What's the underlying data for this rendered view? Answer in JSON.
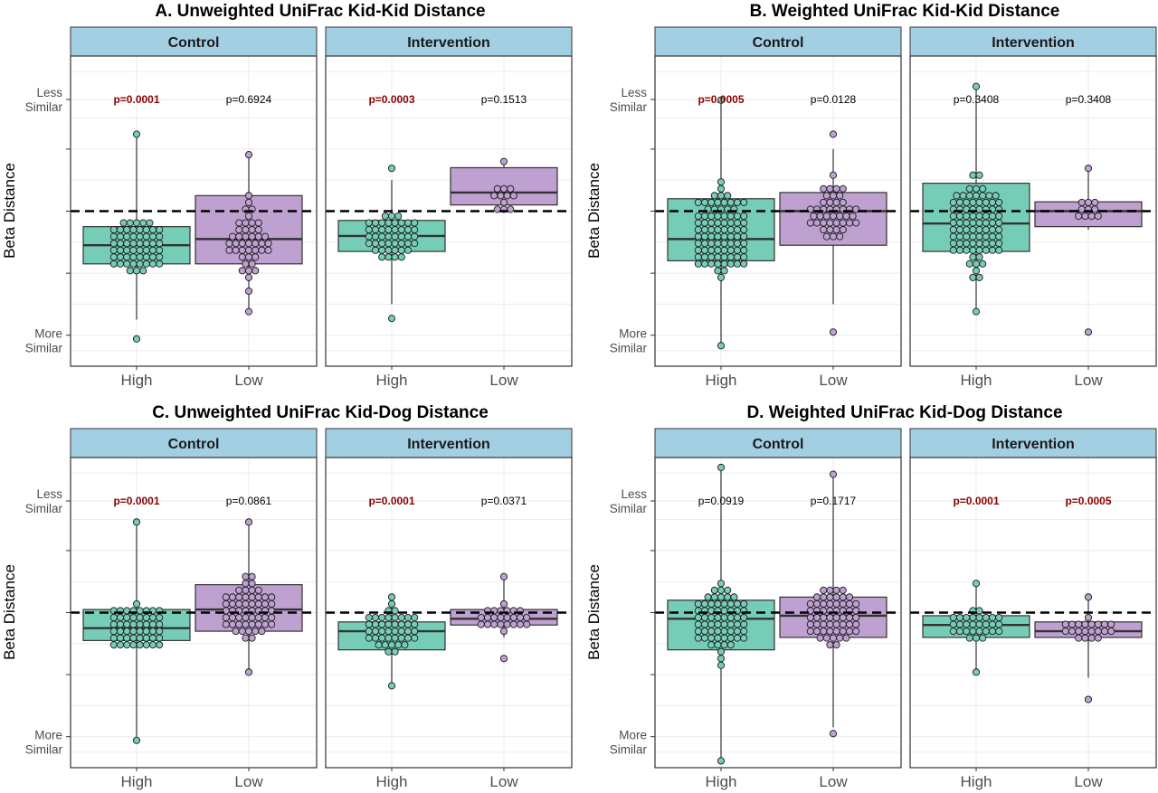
{
  "colors": {
    "high": "#76cdb7",
    "low": "#bea0d1",
    "strip": "#a3cfe3",
    "sig_text": "#8b0000"
  },
  "chart_data": [
    {
      "type": "box",
      "title": "A. Unweighted UniFrac Kid-Kid Distance",
      "ylabel": "Beta Distance",
      "ytick_top": [
        "Less",
        "Similar"
      ],
      "ytick_bottom": [
        "More",
        "Similar"
      ],
      "categories": [
        "High",
        "Low"
      ],
      "reference_line": 0.5,
      "facets": [
        {
          "name": "Control",
          "groups": [
            {
              "category": "High",
              "pvalue": "p=0.0001",
              "significant": true,
              "q1": 0.33,
              "median": 0.39,
              "q3": 0.45,
              "whisker_low": 0.15,
              "whisker_high": 0.75,
              "min": 0.08,
              "max": 0.75,
              "n": 180
            },
            {
              "category": "Low",
              "pvalue": "p=0.6924",
              "significant": false,
              "q1": 0.33,
              "median": 0.41,
              "q3": 0.55,
              "whisker_low": 0.18,
              "whisker_high": 0.68,
              "min": 0.18,
              "max": 0.68,
              "n": 45
            }
          ]
        },
        {
          "name": "Intervention",
          "groups": [
            {
              "category": "High",
              "pvalue": "p=0.0003",
              "significant": true,
              "q1": 0.37,
              "median": 0.42,
              "q3": 0.47,
              "whisker_low": 0.2,
              "whisker_high": 0.6,
              "min": 0.15,
              "max": 0.63,
              "n": 110
            },
            {
              "category": "Low",
              "pvalue": "p=0.1513",
              "significant": false,
              "q1": 0.52,
              "median": 0.56,
              "q3": 0.64,
              "whisker_low": 0.5,
              "whisker_high": 0.66,
              "min": 0.5,
              "max": 0.66,
              "n": 12
            }
          ]
        }
      ]
    },
    {
      "type": "box",
      "title": "B. Weighted UniFrac Kid-Kid Distance",
      "ylabel": "Beta Distance",
      "ytick_top": [
        "Less",
        "Similar"
      ],
      "ytick_bottom": [
        "More",
        "Similar"
      ],
      "categories": [
        "High",
        "Low"
      ],
      "reference_line": 0.5,
      "facets": [
        {
          "name": "Control",
          "groups": [
            {
              "category": "High",
              "pvalue": "p=0.0005",
              "significant": true,
              "q1": 0.34,
              "median": 0.41,
              "q3": 0.54,
              "whisker_low": 0.06,
              "whisker_high": 0.86,
              "min": 0.06,
              "max": 0.86,
              "n": 200
            },
            {
              "category": "Low",
              "pvalue": "p=0.0128",
              "significant": false,
              "q1": 0.39,
              "median": 0.5,
              "q3": 0.56,
              "whisker_low": 0.2,
              "whisker_high": 0.7,
              "min": 0.12,
              "max": 0.74,
              "n": 45
            }
          ]
        },
        {
          "name": "Intervention",
          "groups": [
            {
              "category": "High",
              "pvalue": "p=0.3408",
              "significant": false,
              "q1": 0.37,
              "median": 0.46,
              "q3": 0.59,
              "whisker_low": 0.17,
              "whisker_high": 0.91,
              "min": 0.17,
              "max": 0.91,
              "n": 150
            },
            {
              "category": "Low",
              "pvalue": "p=0.3408",
              "significant": false,
              "q1": 0.45,
              "median": 0.5,
              "q3": 0.53,
              "whisker_low": 0.44,
              "whisker_high": 0.63,
              "min": 0.1,
              "max": 0.63,
              "n": 12
            }
          ]
        }
      ]
    },
    {
      "type": "box",
      "title": "C. Unweighted UniFrac Kid-Dog Distance",
      "ylabel": "Beta Distance",
      "ytick_top": [
        "Less",
        "Similar"
      ],
      "ytick_bottom": [
        "More",
        "Similar"
      ],
      "categories": [
        "High",
        "Low"
      ],
      "reference_line": 0.5,
      "facets": [
        {
          "name": "Control",
          "groups": [
            {
              "category": "High",
              "pvalue": "p=0.0001",
              "significant": true,
              "q1": 0.41,
              "median": 0.45,
              "q3": 0.51,
              "whisker_low": 0.1,
              "whisker_high": 0.79,
              "min": 0.08,
              "max": 0.79,
              "n": 120
            },
            {
              "category": "Low",
              "pvalue": "p=0.0861",
              "significant": false,
              "q1": 0.44,
              "median": 0.51,
              "q3": 0.59,
              "whisker_low": 0.3,
              "whisker_high": 0.79,
              "min": 0.3,
              "max": 0.79,
              "n": 90
            }
          ]
        },
        {
          "name": "Intervention",
          "groups": [
            {
              "category": "High",
              "pvalue": "p=0.0001",
              "significant": true,
              "q1": 0.38,
              "median": 0.44,
              "q3": 0.47,
              "whisker_low": 0.27,
              "whisker_high": 0.55,
              "min": 0.27,
              "max": 0.55,
              "n": 70
            },
            {
              "category": "Low",
              "pvalue": "p=0.0371",
              "significant": false,
              "q1": 0.46,
              "median": 0.48,
              "q3": 0.51,
              "whisker_low": 0.42,
              "whisker_high": 0.61,
              "min": 0.35,
              "max": 0.61,
              "n": 30
            }
          ]
        }
      ]
    },
    {
      "type": "box",
      "title": "D. Weighted UniFrac Kid-Dog Distance",
      "ylabel": "Beta Distance",
      "ytick_top": [
        "Less",
        "Similar"
      ],
      "ytick_bottom": [
        "More",
        "Similar"
      ],
      "categories": [
        "High",
        "Low"
      ],
      "reference_line": 0.5,
      "facets": [
        {
          "name": "Control",
          "groups": [
            {
              "category": "High",
              "pvalue": "p=0.0919",
              "significant": false,
              "q1": 0.38,
              "median": 0.48,
              "q3": 0.54,
              "whisker_low": 0.03,
              "whisker_high": 0.97,
              "min": 0.03,
              "max": 0.97,
              "n": 120
            },
            {
              "category": "Low",
              "pvalue": "p=0.1717",
              "significant": false,
              "q1": 0.42,
              "median": 0.49,
              "q3": 0.55,
              "whisker_low": 0.13,
              "whisker_high": 0.95,
              "min": 0.11,
              "max": 0.95,
              "n": 110
            }
          ]
        },
        {
          "name": "Intervention",
          "groups": [
            {
              "category": "High",
              "pvalue": "p=0.0001",
              "significant": true,
              "q1": 0.42,
              "median": 0.46,
              "q3": 0.49,
              "whisker_low": 0.3,
              "whisker_high": 0.59,
              "min": 0.3,
              "max": 0.59,
              "n": 70
            },
            {
              "category": "Low",
              "pvalue": "p=0.0005",
              "significant": true,
              "q1": 0.42,
              "median": 0.44,
              "q3": 0.47,
              "whisker_low": 0.29,
              "whisker_high": 0.56,
              "min": 0.21,
              "max": 0.56,
              "n": 30
            }
          ]
        }
      ]
    }
  ]
}
